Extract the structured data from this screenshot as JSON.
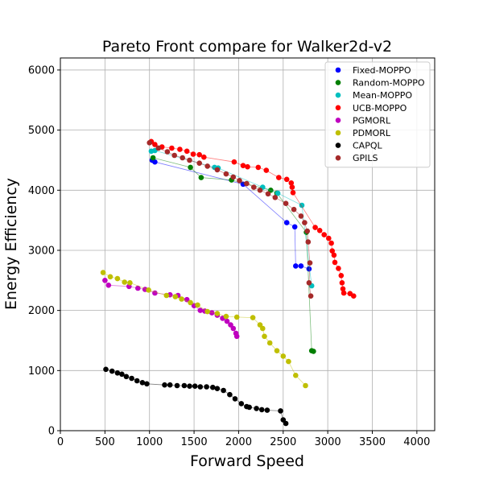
{
  "chart_data": {
    "type": "scatter",
    "title": "Pareto Front compare for Walker2d-v2",
    "xlabel": "Forward Speed",
    "ylabel": "Energy Efficiency",
    "xlim": [
      0,
      4200
    ],
    "ylim": [
      0,
      6200
    ],
    "xticks": [
      "0",
      "500",
      "1000",
      "1500",
      "2000",
      "2500",
      "3000",
      "3500",
      "4000"
    ],
    "yticks": [
      "0",
      "1000",
      "2000",
      "3000",
      "4000",
      "5000",
      "6000"
    ],
    "grid": true,
    "legend_position": "top-right",
    "series": [
      {
        "name": "Fixed-MOPPO",
        "color": "#0000ff",
        "points": [
          [
            1030,
            4500
          ],
          [
            1060,
            4470
          ],
          [
            2050,
            4100
          ],
          [
            2540,
            3460
          ],
          [
            2630,
            3390
          ],
          [
            2640,
            2740
          ],
          [
            2700,
            2740
          ],
          [
            2790,
            2690
          ]
        ]
      },
      {
        "name": "Random-MOPPO",
        "color": "#007f00",
        "points": [
          [
            1040,
            4540
          ],
          [
            1460,
            4380
          ],
          [
            1580,
            4210
          ],
          [
            1920,
            4170
          ],
          [
            2360,
            4000
          ],
          [
            2430,
            3950
          ],
          [
            2760,
            3300
          ],
          [
            2820,
            1330
          ],
          [
            2840,
            1320
          ]
        ]
      },
      {
        "name": "Mean-MOPPO",
        "color": "#00bfbf",
        "points": [
          [
            1020,
            4650
          ],
          [
            1060,
            4660
          ],
          [
            1730,
            4380
          ],
          [
            1770,
            4370
          ],
          [
            2270,
            4050
          ],
          [
            2440,
            3950
          ],
          [
            2710,
            3750
          ],
          [
            2820,
            2410
          ]
        ]
      },
      {
        "name": "UCB-MOPPO",
        "color": "#ff0000",
        "points": [
          [
            1020,
            4810
          ],
          [
            1060,
            4760
          ],
          [
            1140,
            4720
          ],
          [
            1250,
            4700
          ],
          [
            1340,
            4680
          ],
          [
            1420,
            4650
          ],
          [
            1490,
            4600
          ],
          [
            1560,
            4590
          ],
          [
            1610,
            4550
          ],
          [
            1950,
            4470
          ],
          [
            2050,
            4410
          ],
          [
            2100,
            4390
          ],
          [
            2220,
            4380
          ],
          [
            2310,
            4330
          ],
          [
            2450,
            4210
          ],
          [
            2540,
            4180
          ],
          [
            2590,
            4120
          ],
          [
            2600,
            4050
          ],
          [
            2610,
            3960
          ],
          [
            2860,
            3380
          ],
          [
            2910,
            3330
          ],
          [
            2960,
            3260
          ],
          [
            3010,
            3200
          ],
          [
            3040,
            3120
          ],
          [
            3050,
            2990
          ],
          [
            3070,
            2920
          ],
          [
            3080,
            2800
          ],
          [
            3120,
            2700
          ],
          [
            3150,
            2580
          ],
          [
            3160,
            2460
          ],
          [
            3170,
            2360
          ],
          [
            3180,
            2290
          ],
          [
            3250,
            2280
          ],
          [
            3290,
            2240
          ]
        ]
      },
      {
        "name": "PGMORL",
        "color": "#bf00bf",
        "points": [
          [
            500,
            2500
          ],
          [
            540,
            2420
          ],
          [
            770,
            2400
          ],
          [
            870,
            2370
          ],
          [
            950,
            2350
          ],
          [
            1060,
            2290
          ],
          [
            1230,
            2260
          ],
          [
            1320,
            2250
          ],
          [
            1420,
            2180
          ],
          [
            1500,
            2080
          ],
          [
            1570,
            2000
          ],
          [
            1620,
            1990
          ],
          [
            1700,
            1960
          ],
          [
            1760,
            1920
          ],
          [
            1820,
            1870
          ],
          [
            1870,
            1820
          ],
          [
            1910,
            1760
          ],
          [
            1940,
            1700
          ],
          [
            1970,
            1620
          ],
          [
            1980,
            1570
          ]
        ]
      },
      {
        "name": "PDMORL",
        "color": "#bfbf00",
        "points": [
          [
            480,
            2630
          ],
          [
            560,
            2560
          ],
          [
            640,
            2530
          ],
          [
            720,
            2470
          ],
          [
            780,
            2460
          ],
          [
            990,
            2340
          ],
          [
            1190,
            2250
          ],
          [
            1290,
            2230
          ],
          [
            1360,
            2190
          ],
          [
            1460,
            2130
          ],
          [
            1540,
            2090
          ],
          [
            1650,
            1980
          ],
          [
            1760,
            1950
          ],
          [
            1860,
            1900
          ],
          [
            1980,
            1890
          ],
          [
            2160,
            1880
          ],
          [
            2240,
            1760
          ],
          [
            2270,
            1700
          ],
          [
            2290,
            1570
          ],
          [
            2350,
            1460
          ],
          [
            2430,
            1330
          ],
          [
            2500,
            1240
          ],
          [
            2560,
            1150
          ],
          [
            2640,
            920
          ],
          [
            2750,
            750
          ]
        ]
      },
      {
        "name": "CAPQL",
        "color": "#000000",
        "points": [
          [
            510,
            1020
          ],
          [
            580,
            990
          ],
          [
            640,
            960
          ],
          [
            690,
            940
          ],
          [
            740,
            900
          ],
          [
            800,
            870
          ],
          [
            860,
            830
          ],
          [
            920,
            800
          ],
          [
            970,
            780
          ],
          [
            1170,
            760
          ],
          [
            1230,
            760
          ],
          [
            1310,
            750
          ],
          [
            1390,
            750
          ],
          [
            1450,
            740
          ],
          [
            1510,
            740
          ],
          [
            1570,
            730
          ],
          [
            1640,
            730
          ],
          [
            1710,
            720
          ],
          [
            1760,
            700
          ],
          [
            1830,
            670
          ],
          [
            1900,
            600
          ],
          [
            1960,
            530
          ],
          [
            2030,
            450
          ],
          [
            2090,
            400
          ],
          [
            2120,
            390
          ],
          [
            2200,
            370
          ],
          [
            2260,
            350
          ],
          [
            2320,
            340
          ],
          [
            2470,
            330
          ],
          [
            2500,
            180
          ],
          [
            2530,
            120
          ]
        ]
      },
      {
        "name": "GPILS",
        "color": "#a52a2a",
        "points": [
          [
            1000,
            4790
          ],
          [
            1100,
            4700
          ],
          [
            1200,
            4640
          ],
          [
            1280,
            4580
          ],
          [
            1370,
            4540
          ],
          [
            1450,
            4500
          ],
          [
            1560,
            4450
          ],
          [
            1650,
            4400
          ],
          [
            1760,
            4340
          ],
          [
            1860,
            4270
          ],
          [
            1940,
            4220
          ],
          [
            2010,
            4160
          ],
          [
            2090,
            4110
          ],
          [
            2170,
            4050
          ],
          [
            2240,
            4000
          ],
          [
            2330,
            3940
          ],
          [
            2410,
            3880
          ],
          [
            2530,
            3780
          ],
          [
            2620,
            3680
          ],
          [
            2700,
            3570
          ],
          [
            2740,
            3460
          ],
          [
            2770,
            3320
          ],
          [
            2780,
            3140
          ],
          [
            2800,
            2790
          ],
          [
            2790,
            2460
          ],
          [
            2810,
            2240
          ]
        ]
      }
    ]
  }
}
